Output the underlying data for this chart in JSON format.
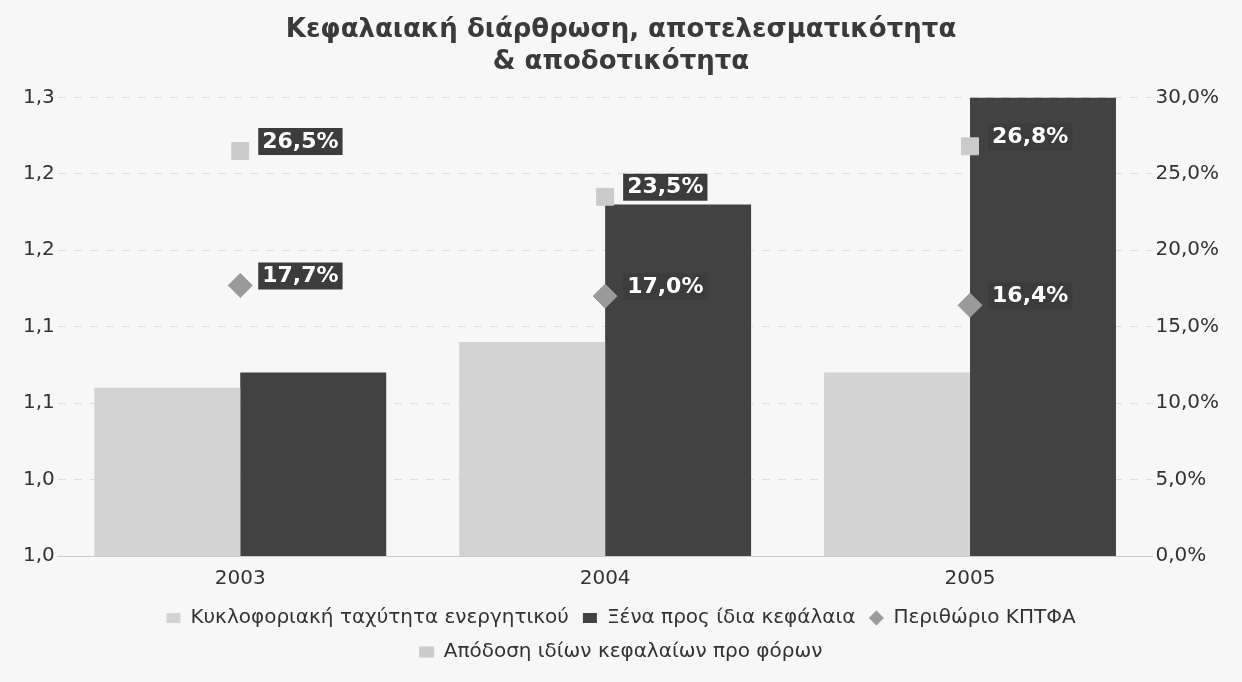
{
  "chart_data": {
    "type": "bar",
    "title": "Κεφαλαιακή διάρθρωση, αποτελεσματικότητα & αποδοτικότητα",
    "categories": [
      "2003",
      "2004",
      "2005"
    ],
    "series": [
      {
        "name": "Κυκλοφοριακή ταχύτητα ενεργητικού",
        "color": "#d3d3d3",
        "values": [
          1.11,
          1.14,
          1.12
        ]
      },
      {
        "name": "Ξένα προς ίδια κεφάλαια",
        "color": "#424242",
        "values": [
          1.12,
          1.23,
          1.3
        ]
      },
      {
        "name": "Περιθώριο ΚΠΤΦΑ",
        "type": "scatter",
        "marker": "diamond",
        "axis": "y2",
        "color": "#9a9a9a",
        "values": [
          17.7,
          17.0,
          16.4
        ],
        "value_labels": [
          "17,7%",
          "17,0%",
          "16,4%"
        ]
      },
      {
        "name": "Απόδοση ιδίων κεφαλαίων προ φόρων",
        "type": "scatter",
        "marker": "square",
        "axis": "y2",
        "color": "#cbcbcb",
        "values": [
          26.5,
          23.5,
          26.8
        ],
        "value_labels": [
          "26,5%",
          "23,5%",
          "26,8%"
        ]
      }
    ],
    "ylim": [
      1.0,
      1.3
    ],
    "yticks": [
      {
        "value": 1.0,
        "label": "1,0"
      },
      {
        "value": 1.05,
        "label": "1,0"
      },
      {
        "value": 1.1,
        "label": "1,1"
      },
      {
        "value": 1.15,
        "label": "1,1"
      },
      {
        "value": 1.2,
        "label": "1,2"
      },
      {
        "value": 1.25,
        "label": "1,2"
      },
      {
        "value": 1.3,
        "label": "1,3"
      }
    ],
    "y2lim": [
      0,
      30
    ],
    "y2ticks": [
      {
        "value": 0,
        "label": "0,0%"
      },
      {
        "value": 5,
        "label": "5,0%"
      },
      {
        "value": 10,
        "label": "10,0%"
      },
      {
        "value": 15,
        "label": "15,0%"
      },
      {
        "value": 20,
        "label": "20,0%"
      },
      {
        "value": 25,
        "label": "25,0%"
      },
      {
        "value": 30,
        "label": "30,0%"
      }
    ],
    "grid": "y",
    "legend": "bottom"
  }
}
